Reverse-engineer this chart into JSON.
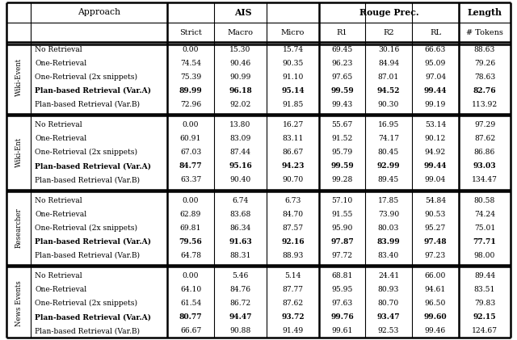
{
  "sections": [
    {
      "label": "Wiki-Event",
      "rows": [
        {
          "approach": "No Retrieval",
          "strict": "0.00",
          "macro": "15.30",
          "micro": "15.74",
          "r1": "69.45",
          "r2": "30.16",
          "rl": "66.63",
          "tokens": "88.63",
          "bold": false
        },
        {
          "approach": "One-Retrieval",
          "strict": "74.54",
          "macro": "90.46",
          "micro": "90.35",
          "r1": "96.23",
          "r2": "84.94",
          "rl": "95.09",
          "tokens": "79.26",
          "bold": false
        },
        {
          "approach": "One-Retrieval (2x snippets)",
          "strict": "75.39",
          "macro": "90.99",
          "micro": "91.10",
          "r1": "97.65",
          "r2": "87.01",
          "rl": "97.04",
          "tokens": "78.63",
          "bold": false
        },
        {
          "approach": "Plan-based Retrieval (Var.A)",
          "strict": "89.99",
          "macro": "96.18",
          "micro": "95.14",
          "r1": "99.59",
          "r2": "94.52",
          "rl": "99.44",
          "tokens": "82.76",
          "bold": true
        },
        {
          "approach": "Plan-based Retrieval (Var.B)",
          "strict": "72.96",
          "macro": "92.02",
          "micro": "91.85",
          "r1": "99.43",
          "r2": "90.30",
          "rl": "99.19",
          "tokens": "113.92",
          "bold": false
        }
      ]
    },
    {
      "label": "Wiki-Ent",
      "rows": [
        {
          "approach": "No Retrieval",
          "strict": "0.00",
          "macro": "13.80",
          "micro": "16.27",
          "r1": "55.67",
          "r2": "16.95",
          "rl": "53.14",
          "tokens": "97.29",
          "bold": false
        },
        {
          "approach": "One-Retrieval",
          "strict": "60.91",
          "macro": "83.09",
          "micro": "83.11",
          "r1": "91.52",
          "r2": "74.17",
          "rl": "90.12",
          "tokens": "87.62",
          "bold": false
        },
        {
          "approach": "One-Retrieval (2x snippets)",
          "strict": "67.03",
          "macro": "87.44",
          "micro": "86.67",
          "r1": "95.79",
          "r2": "80.45",
          "rl": "94.92",
          "tokens": "86.86",
          "bold": false
        },
        {
          "approach": "Plan-based Retrieval (Var.A)",
          "strict": "84.77",
          "macro": "95.16",
          "micro": "94.23",
          "r1": "99.59",
          "r2": "92.99",
          "rl": "99.44",
          "tokens": "93.03",
          "bold": true
        },
        {
          "approach": "Plan-based Retrieval (Var.B)",
          "strict": "63.37",
          "macro": "90.40",
          "micro": "90.70",
          "r1": "99.28",
          "r2": "89.45",
          "rl": "99.04",
          "tokens": "134.47",
          "bold": false
        }
      ]
    },
    {
      "label": "Researcher",
      "rows": [
        {
          "approach": "No Retrieval",
          "strict": "0.00",
          "macro": "6.74",
          "micro": "6.73",
          "r1": "57.10",
          "r2": "17.85",
          "rl": "54.84",
          "tokens": "80.58",
          "bold": false
        },
        {
          "approach": "One-Retrieval",
          "strict": "62.89",
          "macro": "83.68",
          "micro": "84.70",
          "r1": "91.55",
          "r2": "73.90",
          "rl": "90.53",
          "tokens": "74.24",
          "bold": false
        },
        {
          "approach": "One-Retrieval (2x snippets)",
          "strict": "69.81",
          "macro": "86.34",
          "micro": "87.57",
          "r1": "95.90",
          "r2": "80.03",
          "rl": "95.27",
          "tokens": "75.01",
          "bold": false
        },
        {
          "approach": "Plan-based Retrieval (Var.A)",
          "strict": "79.56",
          "macro": "91.63",
          "micro": "92.16",
          "r1": "97.87",
          "r2": "83.99",
          "rl": "97.48",
          "tokens": "77.71",
          "bold": true
        },
        {
          "approach": "Plan-based Retrieval (Var.B)",
          "strict": "64.78",
          "macro": "88.31",
          "micro": "88.93",
          "r1": "97.72",
          "r2": "83.40",
          "rl": "97.23",
          "tokens": "98.00",
          "bold": false
        }
      ]
    },
    {
      "label": "News Events",
      "rows": [
        {
          "approach": "No Retrieval",
          "strict": "0.00",
          "macro": "5.46",
          "micro": "5.14",
          "r1": "68.81",
          "r2": "24.41",
          "rl": "66.00",
          "tokens": "89.44",
          "bold": false
        },
        {
          "approach": "One-Retrieval",
          "strict": "64.10",
          "macro": "84.76",
          "micro": "87.77",
          "r1": "95.95",
          "r2": "80.93",
          "rl": "94.61",
          "tokens": "83.51",
          "bold": false
        },
        {
          "approach": "One-Retrieval (2x snippets)",
          "strict": "61.54",
          "macro": "86.72",
          "micro": "87.62",
          "r1": "97.63",
          "r2": "80.70",
          "rl": "96.50",
          "tokens": "79.83",
          "bold": false
        },
        {
          "approach": "Plan-based Retrieval (Var.A)",
          "strict": "80.77",
          "macro": "94.47",
          "micro": "93.72",
          "r1": "99.76",
          "r2": "93.47",
          "rl": "99.60",
          "tokens": "92.15",
          "bold": true
        },
        {
          "approach": "Plan-based Retrieval (Var.B)",
          "strict": "66.67",
          "macro": "90.88",
          "micro": "91.49",
          "r1": "99.61",
          "r2": "92.53",
          "rl": "99.46",
          "tokens": "124.67",
          "bold": false
        }
      ]
    }
  ],
  "lw_thick": 1.8,
  "lw_thin": 0.8,
  "lw_mid": 1.2,
  "fs_group_header": 7.8,
  "fs_col_header": 7.0,
  "fs_approach": 6.6,
  "fs_data": 6.6,
  "fs_section": 6.2,
  "font_family": "DejaVu Serif",
  "note_color": "#000000",
  "bg_color": "#ffffff"
}
